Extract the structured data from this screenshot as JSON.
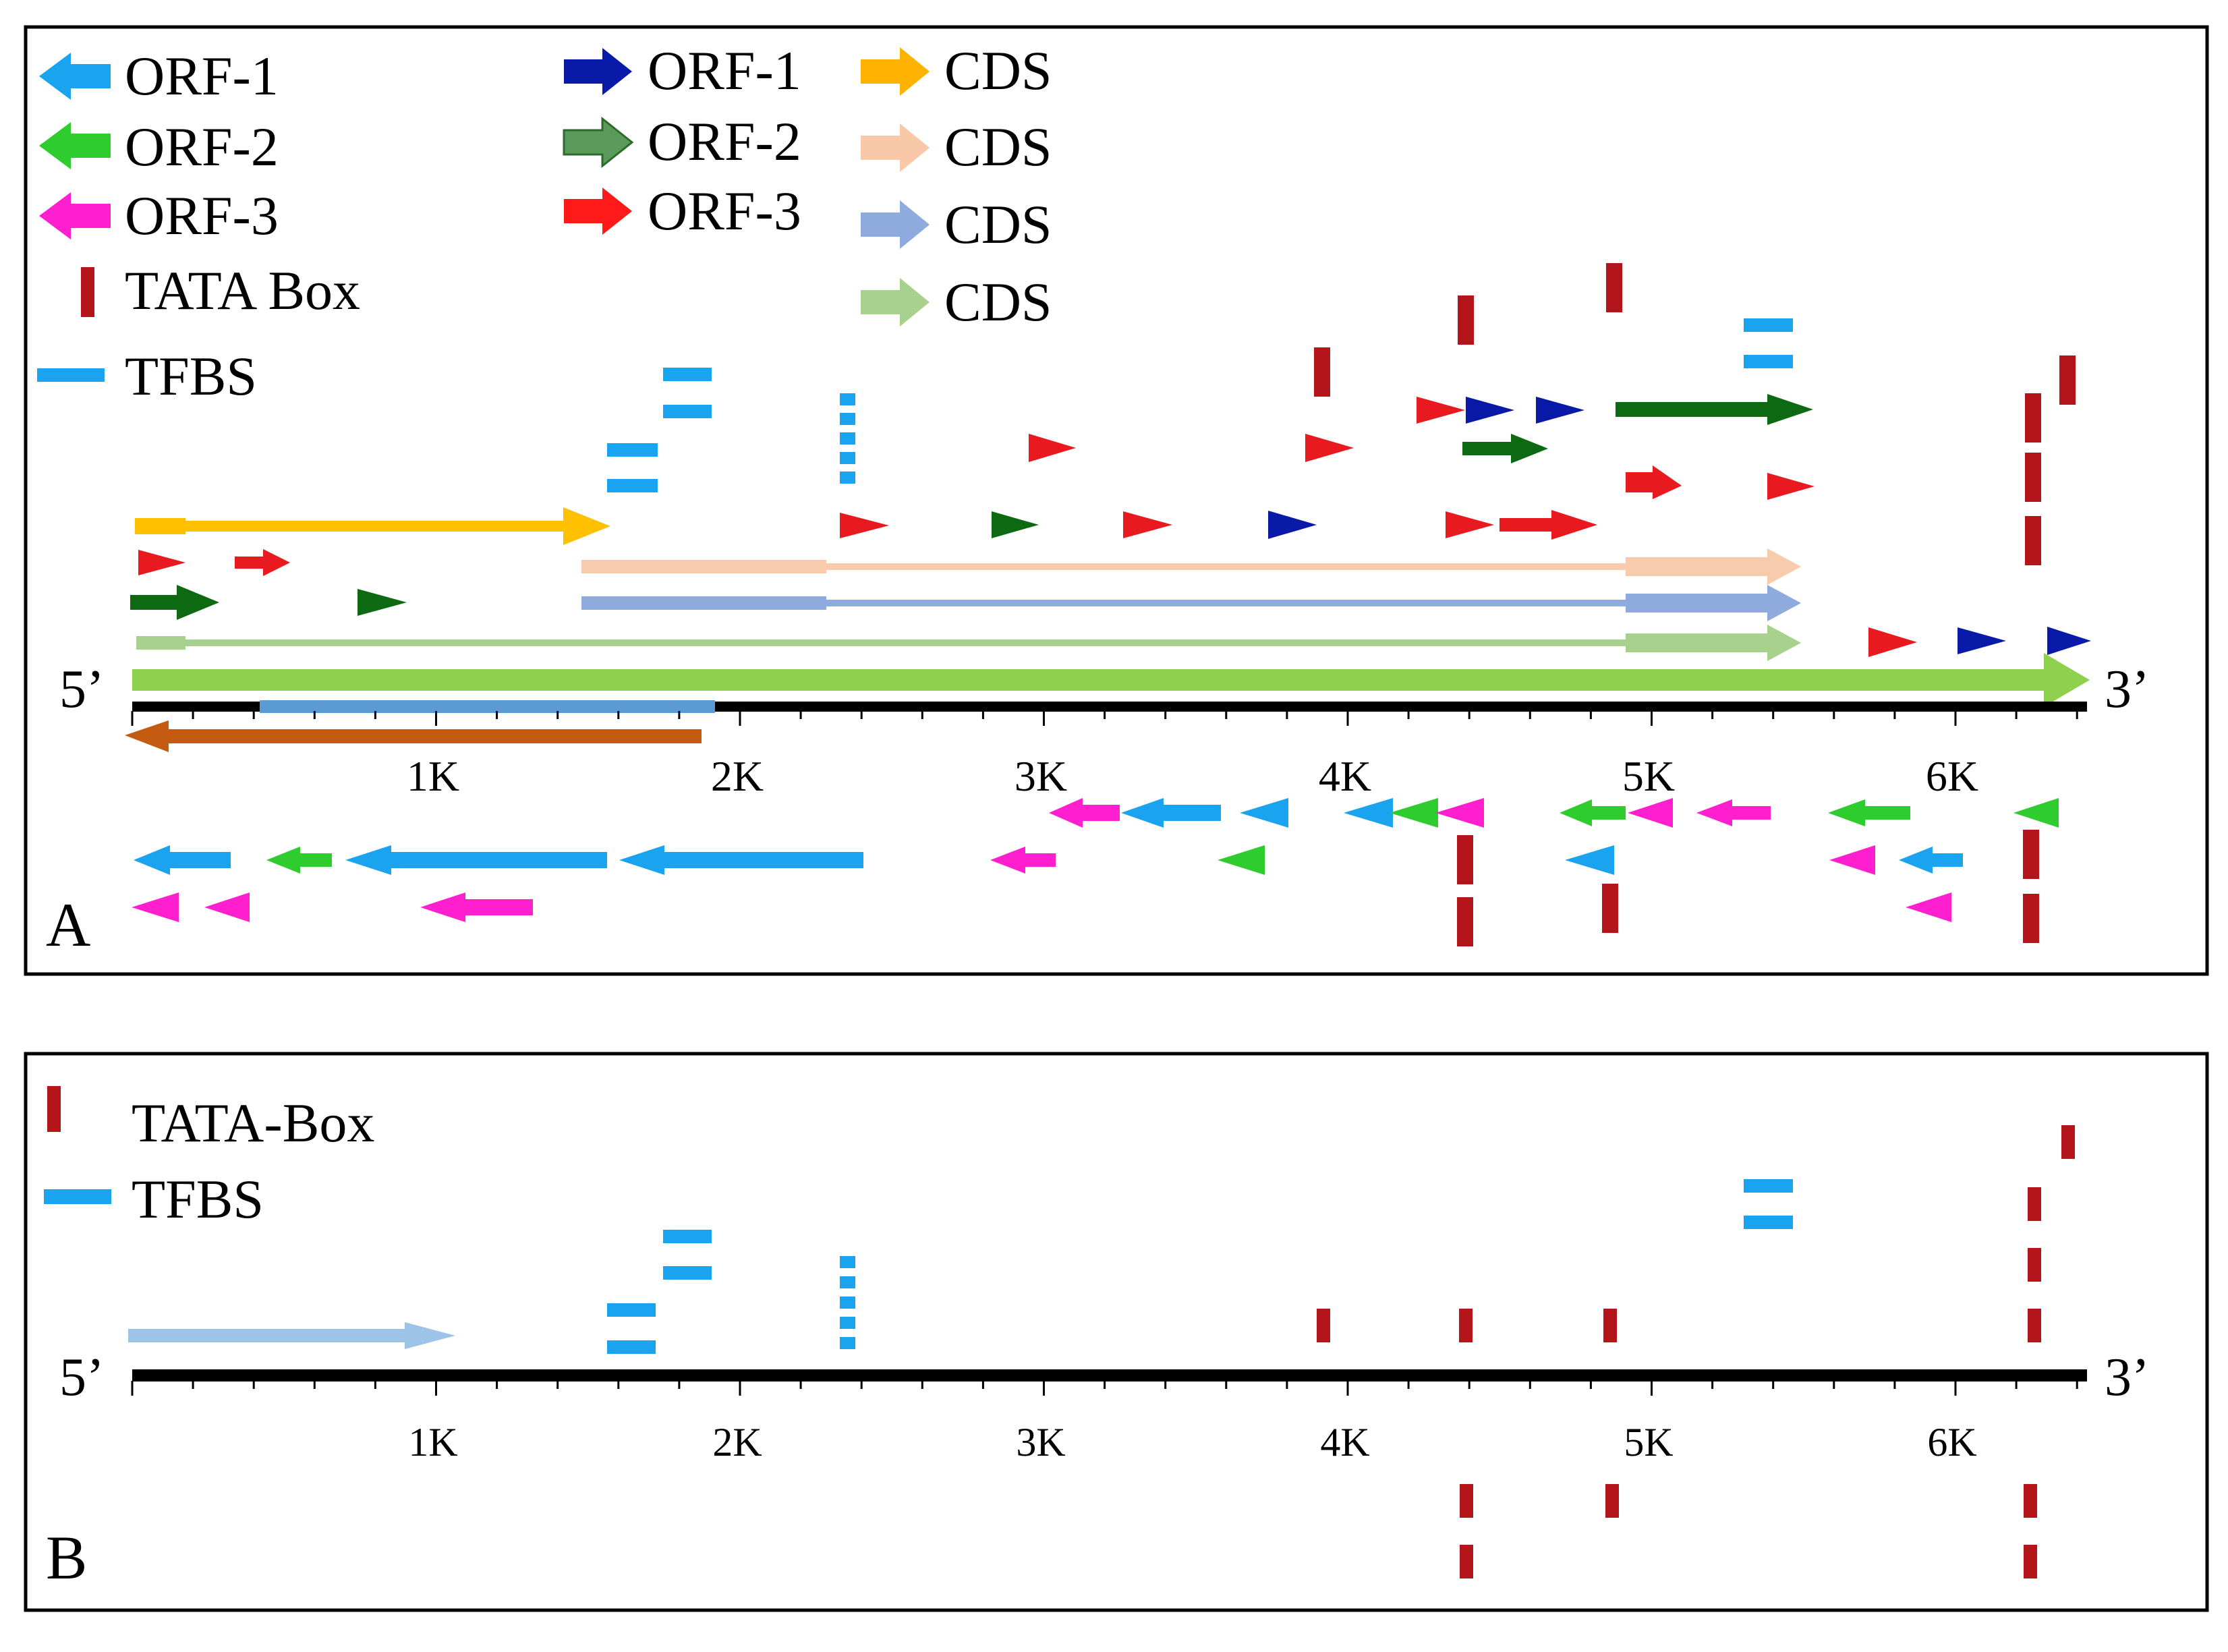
{
  "panel_a": {
    "label": "A",
    "five_prime": "5’",
    "three_prime": "3’",
    "ticks": [
      "1K",
      "2K",
      "3K",
      "4K",
      "5K",
      "6K"
    ],
    "legend": [
      {
        "label": "ORF-1",
        "color": "#1aa3ef",
        "symbol": "arrow-left-icon"
      },
      {
        "label": "ORF-2",
        "color": "#2ecc2e",
        "symbol": "arrow-left-icon"
      },
      {
        "label": "ORF-3",
        "color": "#ff1fcf",
        "symbol": "arrow-left-icon"
      },
      {
        "label": "TATA Box",
        "color": "#b3151b",
        "symbol": "vertical-bar-icon"
      },
      {
        "label": "TFBS",
        "color": "#1aa3ef",
        "symbol": "horizontal-bar-icon"
      },
      {
        "label": "ORF-1",
        "color": "#0a1aa8",
        "symbol": "arrow-right-icon"
      },
      {
        "label": "ORF-2",
        "color": "#5a9a5a",
        "symbol": "arrow-right-icon"
      },
      {
        "label": "ORF-3",
        "color": "#ff1a1a",
        "symbol": "arrow-right-icon"
      },
      {
        "label": "CDS",
        "color": "#ffb300",
        "symbol": "arrow-right-icon"
      },
      {
        "label": "CDS",
        "color": "#f8c8a8",
        "symbol": "arrow-right-icon"
      },
      {
        "label": "CDS",
        "color": "#8faadc",
        "symbol": "arrow-right-icon"
      },
      {
        "label": "CDS",
        "color": "#a9d18e",
        "symbol": "arrow-right-icon"
      }
    ]
  },
  "panel_b": {
    "label": "B",
    "five_prime": "5’",
    "three_prime": "3’",
    "ticks": [
      "1K",
      "2K",
      "3K",
      "4K",
      "5K",
      "6K"
    ],
    "legend": [
      {
        "label": "TATA-Box",
        "color": "#b3151b",
        "symbol": "vertical-bar-icon"
      },
      {
        "label": "TFBS",
        "color": "#1aa3ef",
        "symbol": "horizontal-bar-icon"
      }
    ]
  }
}
